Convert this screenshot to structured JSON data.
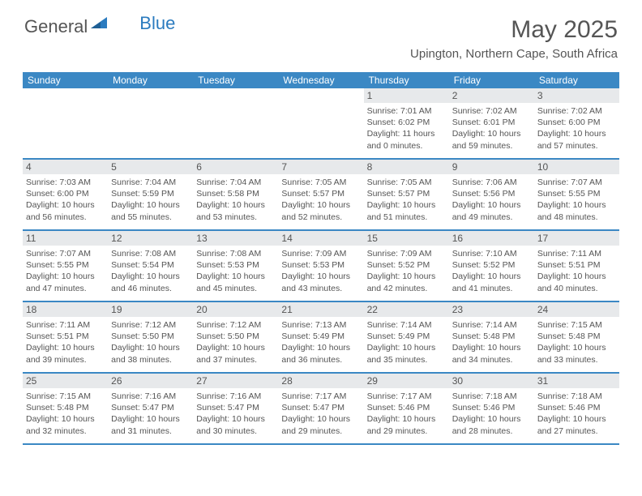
{
  "logo": {
    "text_general": "General",
    "text_blue": "Blue",
    "triangle_color": "#2b7bbf"
  },
  "header": {
    "month_title": "May 2025",
    "location": "Upington, Northern Cape, South Africa"
  },
  "colors": {
    "header_bar": "#3b88c4",
    "daynum_bg": "#e7e9eb",
    "border": "#3b88c4",
    "text": "#555555"
  },
  "weekdays": [
    "Sunday",
    "Monday",
    "Tuesday",
    "Wednesday",
    "Thursday",
    "Friday",
    "Saturday"
  ],
  "weeks": [
    [
      {
        "day": "",
        "sunrise": "",
        "sunset": "",
        "daylight": ""
      },
      {
        "day": "",
        "sunrise": "",
        "sunset": "",
        "daylight": ""
      },
      {
        "day": "",
        "sunrise": "",
        "sunset": "",
        "daylight": ""
      },
      {
        "day": "",
        "sunrise": "",
        "sunset": "",
        "daylight": ""
      },
      {
        "day": "1",
        "sunrise": "Sunrise: 7:01 AM",
        "sunset": "Sunset: 6:02 PM",
        "daylight": "Daylight: 11 hours and 0 minutes."
      },
      {
        "day": "2",
        "sunrise": "Sunrise: 7:02 AM",
        "sunset": "Sunset: 6:01 PM",
        "daylight": "Daylight: 10 hours and 59 minutes."
      },
      {
        "day": "3",
        "sunrise": "Sunrise: 7:02 AM",
        "sunset": "Sunset: 6:00 PM",
        "daylight": "Daylight: 10 hours and 57 minutes."
      }
    ],
    [
      {
        "day": "4",
        "sunrise": "Sunrise: 7:03 AM",
        "sunset": "Sunset: 6:00 PM",
        "daylight": "Daylight: 10 hours and 56 minutes."
      },
      {
        "day": "5",
        "sunrise": "Sunrise: 7:04 AM",
        "sunset": "Sunset: 5:59 PM",
        "daylight": "Daylight: 10 hours and 55 minutes."
      },
      {
        "day": "6",
        "sunrise": "Sunrise: 7:04 AM",
        "sunset": "Sunset: 5:58 PM",
        "daylight": "Daylight: 10 hours and 53 minutes."
      },
      {
        "day": "7",
        "sunrise": "Sunrise: 7:05 AM",
        "sunset": "Sunset: 5:57 PM",
        "daylight": "Daylight: 10 hours and 52 minutes."
      },
      {
        "day": "8",
        "sunrise": "Sunrise: 7:05 AM",
        "sunset": "Sunset: 5:57 PM",
        "daylight": "Daylight: 10 hours and 51 minutes."
      },
      {
        "day": "9",
        "sunrise": "Sunrise: 7:06 AM",
        "sunset": "Sunset: 5:56 PM",
        "daylight": "Daylight: 10 hours and 49 minutes."
      },
      {
        "day": "10",
        "sunrise": "Sunrise: 7:07 AM",
        "sunset": "Sunset: 5:55 PM",
        "daylight": "Daylight: 10 hours and 48 minutes."
      }
    ],
    [
      {
        "day": "11",
        "sunrise": "Sunrise: 7:07 AM",
        "sunset": "Sunset: 5:55 PM",
        "daylight": "Daylight: 10 hours and 47 minutes."
      },
      {
        "day": "12",
        "sunrise": "Sunrise: 7:08 AM",
        "sunset": "Sunset: 5:54 PM",
        "daylight": "Daylight: 10 hours and 46 minutes."
      },
      {
        "day": "13",
        "sunrise": "Sunrise: 7:08 AM",
        "sunset": "Sunset: 5:53 PM",
        "daylight": "Daylight: 10 hours and 45 minutes."
      },
      {
        "day": "14",
        "sunrise": "Sunrise: 7:09 AM",
        "sunset": "Sunset: 5:53 PM",
        "daylight": "Daylight: 10 hours and 43 minutes."
      },
      {
        "day": "15",
        "sunrise": "Sunrise: 7:09 AM",
        "sunset": "Sunset: 5:52 PM",
        "daylight": "Daylight: 10 hours and 42 minutes."
      },
      {
        "day": "16",
        "sunrise": "Sunrise: 7:10 AM",
        "sunset": "Sunset: 5:52 PM",
        "daylight": "Daylight: 10 hours and 41 minutes."
      },
      {
        "day": "17",
        "sunrise": "Sunrise: 7:11 AM",
        "sunset": "Sunset: 5:51 PM",
        "daylight": "Daylight: 10 hours and 40 minutes."
      }
    ],
    [
      {
        "day": "18",
        "sunrise": "Sunrise: 7:11 AM",
        "sunset": "Sunset: 5:51 PM",
        "daylight": "Daylight: 10 hours and 39 minutes."
      },
      {
        "day": "19",
        "sunrise": "Sunrise: 7:12 AM",
        "sunset": "Sunset: 5:50 PM",
        "daylight": "Daylight: 10 hours and 38 minutes."
      },
      {
        "day": "20",
        "sunrise": "Sunrise: 7:12 AM",
        "sunset": "Sunset: 5:50 PM",
        "daylight": "Daylight: 10 hours and 37 minutes."
      },
      {
        "day": "21",
        "sunrise": "Sunrise: 7:13 AM",
        "sunset": "Sunset: 5:49 PM",
        "daylight": "Daylight: 10 hours and 36 minutes."
      },
      {
        "day": "22",
        "sunrise": "Sunrise: 7:14 AM",
        "sunset": "Sunset: 5:49 PM",
        "daylight": "Daylight: 10 hours and 35 minutes."
      },
      {
        "day": "23",
        "sunrise": "Sunrise: 7:14 AM",
        "sunset": "Sunset: 5:48 PM",
        "daylight": "Daylight: 10 hours and 34 minutes."
      },
      {
        "day": "24",
        "sunrise": "Sunrise: 7:15 AM",
        "sunset": "Sunset: 5:48 PM",
        "daylight": "Daylight: 10 hours and 33 minutes."
      }
    ],
    [
      {
        "day": "25",
        "sunrise": "Sunrise: 7:15 AM",
        "sunset": "Sunset: 5:48 PM",
        "daylight": "Daylight: 10 hours and 32 minutes."
      },
      {
        "day": "26",
        "sunrise": "Sunrise: 7:16 AM",
        "sunset": "Sunset: 5:47 PM",
        "daylight": "Daylight: 10 hours and 31 minutes."
      },
      {
        "day": "27",
        "sunrise": "Sunrise: 7:16 AM",
        "sunset": "Sunset: 5:47 PM",
        "daylight": "Daylight: 10 hours and 30 minutes."
      },
      {
        "day": "28",
        "sunrise": "Sunrise: 7:17 AM",
        "sunset": "Sunset: 5:47 PM",
        "daylight": "Daylight: 10 hours and 29 minutes."
      },
      {
        "day": "29",
        "sunrise": "Sunrise: 7:17 AM",
        "sunset": "Sunset: 5:46 PM",
        "daylight": "Daylight: 10 hours and 29 minutes."
      },
      {
        "day": "30",
        "sunrise": "Sunrise: 7:18 AM",
        "sunset": "Sunset: 5:46 PM",
        "daylight": "Daylight: 10 hours and 28 minutes."
      },
      {
        "day": "31",
        "sunrise": "Sunrise: 7:18 AM",
        "sunset": "Sunset: 5:46 PM",
        "daylight": "Daylight: 10 hours and 27 minutes."
      }
    ]
  ]
}
